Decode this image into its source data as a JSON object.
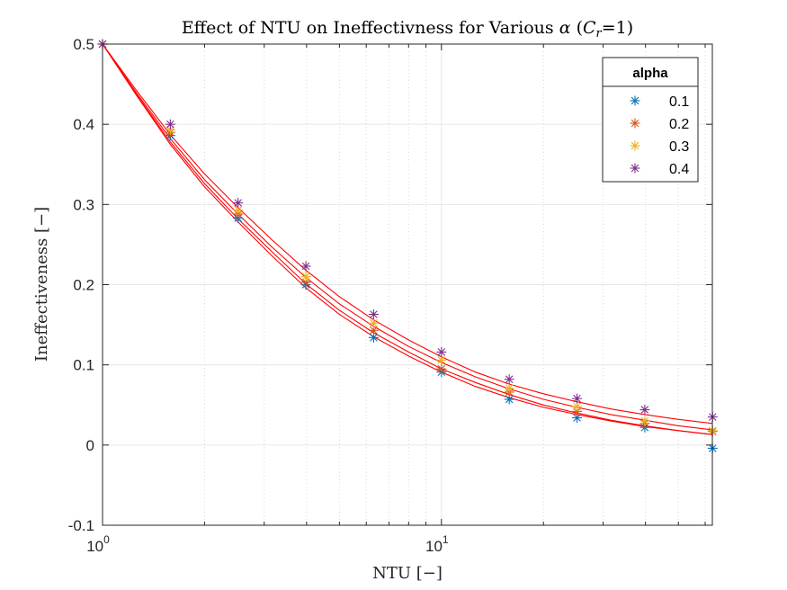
{
  "chart_data": {
    "type": "scatter",
    "title_parts": {
      "prefix": "Effect of NTU on Ineffectivness for Various ",
      "alpha_symbol": "α",
      "open": " (",
      "c": "C",
      "c_sub": "r",
      "close": "=1)"
    },
    "xlabel": "NTU [−]",
    "ylabel": "Ineffectiveness [−]",
    "xscale": "log",
    "xlim": [
      1,
      63
    ],
    "ylim": [
      -0.1,
      0.5
    ],
    "yticks": [
      "-0.1",
      "0",
      "0.1",
      "0.2",
      "0.3",
      "0.4",
      "0.5"
    ],
    "yticks_values": [
      -0.1,
      0,
      0.1,
      0.2,
      0.3,
      0.4,
      0.5
    ],
    "xticks": [
      {
        "value": 1,
        "base": "10",
        "exp": "0"
      },
      {
        "value": 10,
        "base": "10",
        "exp": "1"
      }
    ],
    "grid": true,
    "legend": {
      "title": "alpha",
      "placement": "top-right",
      "entries": [
        "0.1",
        "0.2",
        "0.3",
        "0.4"
      ]
    },
    "x": [
      1,
      1.585,
      2.512,
      3.981,
      6.31,
      10,
      15.85,
      25.12,
      39.81,
      63.1
    ],
    "series": [
      {
        "name": "0.1",
        "color": "#0072BD",
        "values": [
          0.5,
          0.386,
          0.283,
          0.2,
          0.134,
          0.091,
          0.057,
          0.034,
          0.022,
          -0.004
        ]
      },
      {
        "name": "0.2",
        "color": "#D95319",
        "values": [
          0.5,
          0.39,
          0.288,
          0.203,
          0.143,
          0.095,
          0.066,
          0.042,
          0.027,
          0.017
        ]
      },
      {
        "name": "0.3",
        "color": "#EDB120",
        "values": [
          0.5,
          0.393,
          0.293,
          0.21,
          0.152,
          0.106,
          0.071,
          0.048,
          0.03,
          0.018
        ]
      },
      {
        "name": "0.4",
        "color": "#7E2F8E",
        "values": [
          0.5,
          0.4,
          0.302,
          0.223,
          0.163,
          0.116,
          0.082,
          0.058,
          0.044,
          0.035
        ]
      }
    ],
    "fit_curves": {
      "color": "#FF0000",
      "x": [
        1,
        1.26,
        1.585,
        2,
        2.512,
        3.16,
        3.981,
        5,
        6.31,
        8,
        10,
        12.6,
        15.85,
        20,
        25.12,
        31.6,
        39.81,
        50,
        63
      ],
      "curves": [
        [
          0.5,
          0.436,
          0.375,
          0.322,
          0.278,
          0.236,
          0.196,
          0.163,
          0.135,
          0.111,
          0.091,
          0.073,
          0.059,
          0.047,
          0.038,
          0.03,
          0.023,
          0.018,
          0.013
        ],
        [
          0.5,
          0.437,
          0.378,
          0.326,
          0.282,
          0.241,
          0.201,
          0.168,
          0.14,
          0.116,
          0.095,
          0.078,
          0.063,
          0.05,
          0.04,
          0.031,
          0.024,
          0.018,
          0.013
        ],
        [
          0.5,
          0.439,
          0.382,
          0.331,
          0.288,
          0.247,
          0.209,
          0.176,
          0.148,
          0.123,
          0.103,
          0.085,
          0.07,
          0.057,
          0.047,
          0.038,
          0.031,
          0.024,
          0.019
        ],
        [
          0.5,
          0.442,
          0.387,
          0.338,
          0.296,
          0.256,
          0.218,
          0.185,
          0.156,
          0.131,
          0.11,
          0.091,
          0.076,
          0.064,
          0.054,
          0.045,
          0.038,
          0.032,
          0.027
        ]
      ]
    }
  }
}
